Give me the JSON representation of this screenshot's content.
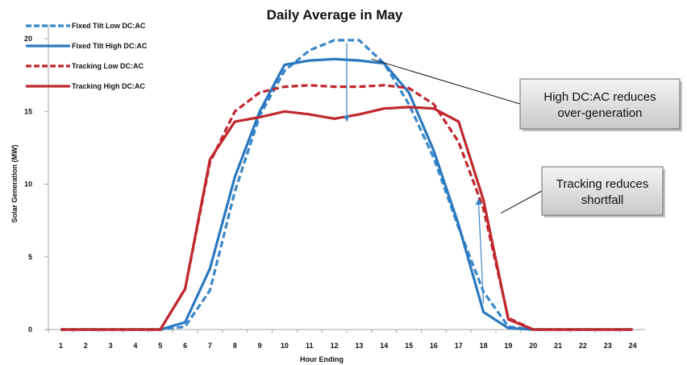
{
  "chart_data": {
    "type": "line",
    "title": "Daily Average in May",
    "xlabel": "Hour Ending",
    "ylabel": "Solar Generation (MW)",
    "x": [
      "1",
      "2",
      "3",
      "4",
      "5",
      "6",
      "7",
      "8",
      "9",
      "10",
      "11",
      "12",
      "13",
      "14",
      "15",
      "16",
      "17",
      "18",
      "19",
      "20",
      "21",
      "22",
      "23",
      "24"
    ],
    "yticks": [
      "0",
      "5",
      "10",
      "15",
      "20"
    ],
    "ylim": [
      0,
      21
    ],
    "grid": false,
    "legend_position": "top-left",
    "series": [
      {
        "name": "Fixed Tilt Low DC:AC",
        "color": "#3a87c8",
        "dash": "dashed",
        "values": [
          0,
          0,
          0,
          0,
          0,
          0.2,
          2.7,
          9.5,
          14.7,
          17.8,
          19.2,
          19.9,
          19.9,
          18.3,
          15.5,
          11.8,
          7.0,
          2.6,
          0.2,
          0,
          0,
          0,
          0,
          0
        ]
      },
      {
        "name": "Fixed Tilt High DC:AC",
        "color": "#2a78c0",
        "dash": "solid",
        "values": [
          0,
          0,
          0,
          0,
          0,
          0.5,
          4.2,
          10.5,
          15.0,
          18.2,
          18.5,
          18.6,
          18.5,
          18.3,
          16.3,
          12.3,
          7.2,
          1.2,
          0.1,
          0,
          0,
          0,
          0,
          0
        ]
      },
      {
        "name": "Tracking Low DC:AC",
        "color": "#c0272d",
        "dash": "dashed",
        "values": [
          0,
          0,
          0,
          0,
          0,
          2.8,
          11.5,
          15.0,
          16.3,
          16.7,
          16.8,
          16.7,
          16.7,
          16.8,
          16.6,
          15.5,
          12.9,
          8.3,
          0.8,
          0,
          0,
          0,
          0,
          0
        ]
      },
      {
        "name": "Tracking High DC:AC",
        "color": "#c0272d",
        "dash": "solid",
        "values": [
          0,
          0,
          0,
          0,
          0,
          2.8,
          11.7,
          14.3,
          14.6,
          15.0,
          14.8,
          14.5,
          14.8,
          15.2,
          15.3,
          15.2,
          14.3,
          8.9,
          0.7,
          0,
          0,
          0,
          0,
          0
        ]
      }
    ],
    "annotations": [
      {
        "text_lines": [
          "High DC:AC reduces",
          "over-generation"
        ],
        "points_to_x": 13.5,
        "points_to_y": 18.6
      },
      {
        "text_lines": [
          "Tracking reduces",
          "shortfall"
        ],
        "points_to_x": 18.7,
        "points_to_y": 8.0
      }
    ],
    "arrows": [
      {
        "x": 12.5,
        "from_y": 19.7,
        "to_y": 14.5
      },
      {
        "x_from": 18.0,
        "x_to": 17.8,
        "from_y": 1.8,
        "to_y": 8.8
      }
    ]
  }
}
